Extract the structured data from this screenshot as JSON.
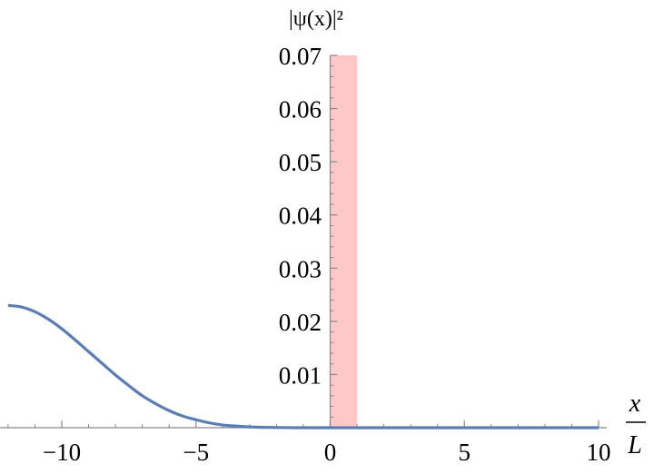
{
  "chart_data": {
    "type": "line",
    "title": "",
    "ylabel": "|ψ(x)|²",
    "xlabel_num": "x",
    "xlabel_den": "L",
    "xlim": [
      -12,
      10.5
    ],
    "ylim": [
      0,
      0.07
    ],
    "x_ticks": [
      -10,
      -5,
      0,
      5,
      10
    ],
    "x_tick_labels": [
      "−10",
      "−5",
      "0",
      "5",
      "10"
    ],
    "y_ticks": [
      0.01,
      0.02,
      0.03,
      0.04,
      0.05,
      0.06,
      0.07
    ],
    "y_tick_labels": [
      "0.01",
      "0.02",
      "0.03",
      "0.04",
      "0.05",
      "0.06",
      "0.07"
    ],
    "grid": false,
    "series": [
      {
        "color": "#5b7db5",
        "x": [
          -12,
          -11.5,
          -11,
          -10.5,
          -10,
          -9.5,
          -9,
          -8.5,
          -8,
          -7.5,
          -7,
          -6.5,
          -6,
          -5.5,
          -5,
          -4.5,
          -4,
          -3.5,
          -3,
          -2.5,
          -2,
          -1.5,
          -1,
          0,
          2,
          4,
          6,
          8,
          10
        ],
        "y": [
          0.023,
          0.0227,
          0.0218,
          0.0204,
          0.0186,
          0.0165,
          0.0143,
          0.0121,
          0.0099,
          0.0079,
          0.006,
          0.0045,
          0.0032,
          0.0022,
          0.0015,
          0.0009,
          0.0005,
          0.0003,
          0.00015,
          7e-05,
          3e-05,
          1e-05,
          0.0,
          0.0,
          0.0,
          0.0,
          0.0,
          0.0,
          0.0
        ]
      }
    ],
    "region": {
      "x": [
        0,
        1
      ],
      "y": [
        0,
        0.07
      ],
      "color": "#ffc8c8"
    }
  }
}
